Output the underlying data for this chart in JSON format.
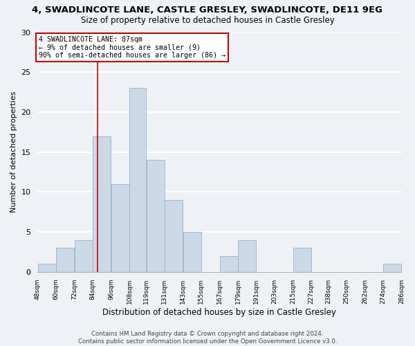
{
  "title": "4, SWADLINCOTE LANE, CASTLE GRESLEY, SWADLINCOTE, DE11 9EG",
  "subtitle": "Size of property relative to detached houses in Castle Gresley",
  "xlabel": "Distribution of detached houses by size in Castle Gresley",
  "ylabel": "Number of detached properties",
  "bar_color": "#ccd9e8",
  "bar_edge_color": "#9bb0c8",
  "bins": [
    48,
    60,
    72,
    84,
    96,
    108,
    119,
    131,
    143,
    155,
    167,
    179,
    191,
    203,
    215,
    227,
    238,
    250,
    262,
    274,
    286
  ],
  "counts": [
    1,
    3,
    4,
    17,
    11,
    23,
    14,
    9,
    5,
    0,
    2,
    4,
    0,
    0,
    3,
    0,
    0,
    0,
    0,
    1
  ],
  "tick_labels": [
    "48sqm",
    "60sqm",
    "72sqm",
    "84sqm",
    "96sqm",
    "108sqm",
    "119sqm",
    "131sqm",
    "143sqm",
    "155sqm",
    "167sqm",
    "179sqm",
    "191sqm",
    "203sqm",
    "215sqm",
    "227sqm",
    "238sqm",
    "250sqm",
    "262sqm",
    "274sqm",
    "286sqm"
  ],
  "ylim": [
    0,
    30
  ],
  "yticks": [
    0,
    5,
    10,
    15,
    20,
    25,
    30
  ],
  "property_line_x": 87,
  "annotation_text": "4 SWADLINCOTE LANE: 87sqm\n← 9% of detached houses are smaller (9)\n90% of semi-detached houses are larger (86) →",
  "annotation_box_color": "#ffffff",
  "annotation_box_edge": "#cc0000",
  "vline_color": "#cc0000",
  "footer_text": "Contains HM Land Registry data © Crown copyright and database right 2024.\nContains public sector information licensed under the Open Government Licence v3.0.",
  "background_color": "#eef2f7",
  "plot_bg_color": "#eef2f7",
  "grid_color": "#ffffff"
}
